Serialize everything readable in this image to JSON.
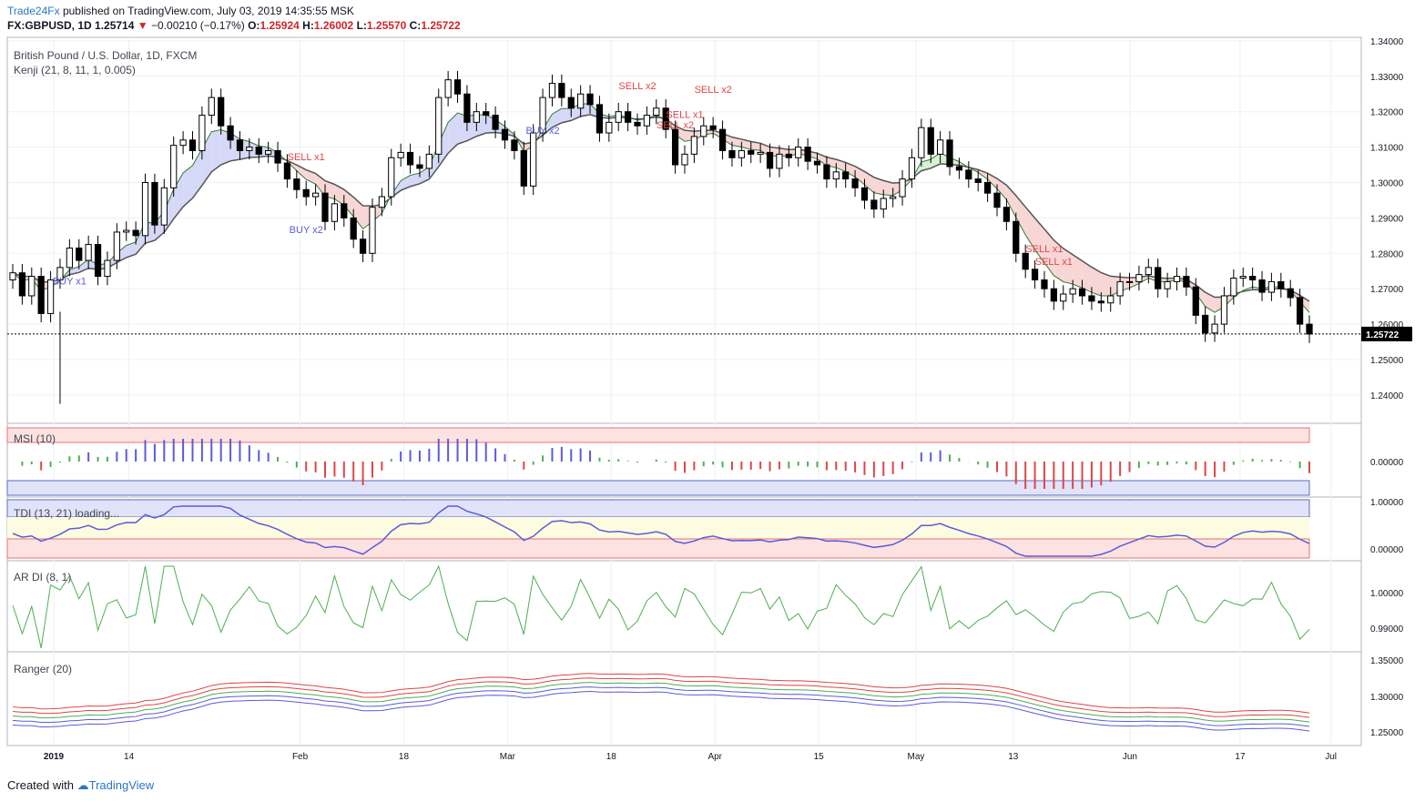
{
  "header": {
    "publisher": "Trade24Fx",
    "published_text": "published on TradingView.com, July 03, 2019 14:35:55 MSK",
    "symbol": "FX:GBPUSD, 1D",
    "last": "1.25714",
    "change": "−0.00210 (−0.17%)",
    "o_label": "O:",
    "o": "1.25924",
    "h_label": "H:",
    "h": "1.26002",
    "l_label": "L:",
    "l": "1.25570",
    "c_label": "C:",
    "c": "1.25722"
  },
  "footer": {
    "created_with": "Created with",
    "brand": "TradingView"
  },
  "colors": {
    "bull": "#ffffff",
    "bear": "#000000",
    "buy": "#5b5bdb",
    "sell": "#e04545",
    "green": "#4caf50",
    "grid": "#eef0f3",
    "price_line": "#000000"
  },
  "chart_data": {
    "type": "candlestick",
    "title": "British Pound / U.S. Dollar, 1D, FXCM",
    "last_price_label": "1.25722",
    "x_ticks": [
      "2019",
      "14",
      "Feb",
      "18",
      "Mar",
      "18",
      "Apr",
      "15",
      "May",
      "13",
      "Jun",
      "17",
      "Jul"
    ],
    "y_ticks": [
      "1.34000",
      "1.33000",
      "1.32000",
      "1.31000",
      "1.30000",
      "1.29000",
      "1.28000",
      "1.27000",
      "1.26000",
      "1.25000",
      "1.24000"
    ],
    "ylim": [
      1.232,
      1.341
    ],
    "closes": [
      1.2745,
      1.268,
      1.2735,
      1.263,
      1.2725,
      1.276,
      1.2815,
      1.278,
      1.2825,
      1.2735,
      1.278,
      1.286,
      1.2865,
      1.285,
      1.3,
      1.288,
      1.2985,
      1.3105,
      1.312,
      1.309,
      1.319,
      1.324,
      1.316,
      1.312,
      1.309,
      1.31,
      1.308,
      1.309,
      1.3055,
      1.301,
      1.298,
      1.296,
      1.297,
      1.289,
      1.294,
      1.29,
      1.284,
      1.28,
      1.293,
      1.296,
      1.307,
      1.3085,
      1.305,
      1.304,
      1.308,
      1.324,
      1.329,
      1.325,
      1.317,
      1.32,
      1.319,
      1.315,
      1.312,
      1.309,
      1.299,
      1.314,
      1.324,
      1.328,
      1.324,
      1.321,
      1.325,
      1.322,
      1.314,
      1.317,
      1.32,
      1.317,
      1.316,
      1.319,
      1.321,
      1.315,
      1.305,
      1.308,
      1.313,
      1.316,
      1.315,
      1.309,
      1.307,
      1.309,
      1.308,
      1.3085,
      1.304,
      1.308,
      1.307,
      1.31,
      1.306,
      1.305,
      1.301,
      1.303,
      1.301,
      1.2985,
      1.295,
      1.2925,
      1.2955,
      1.296,
      1.301,
      1.307,
      1.3155,
      1.308,
      1.312,
      1.3045,
      1.3035,
      1.301,
      1.3,
      1.297,
      1.293,
      1.289,
      1.28,
      1.2755,
      1.2725,
      1.27,
      1.2665,
      1.2685,
      1.27,
      1.268,
      1.2665,
      1.266,
      1.268,
      1.272,
      1.272,
      1.274,
      1.276,
      1.27,
      1.272,
      1.2735,
      1.2705,
      1.2625,
      1.2575,
      1.26,
      1.268,
      1.273,
      1.2735,
      1.2725,
      1.269,
      1.272,
      1.27,
      1.2675,
      1.26,
      1.2572
    ],
    "ohlc_note": "",
    "upper_band_color": "#5b5bdb",
    "markers": [
      {
        "text": "BUY x1",
        "x_date": "2019-01-10",
        "side": "buy"
      },
      {
        "text": "BUY x2",
        "x_date": "2019-02-15",
        "side": "buy"
      },
      {
        "text": "BUY x2",
        "x_date": "2019-03-22",
        "side": "buy"
      },
      {
        "text": "SELL x1",
        "x_date": "2019-02-14",
        "side": "sell"
      },
      {
        "text": "SELL x2",
        "x_date": "2019-04-05",
        "side": "sell"
      },
      {
        "text": "SELL x2",
        "x_date": "2019-04-10",
        "side": "sell"
      },
      {
        "text": "SELL x1",
        "x_date": "2019-04-12",
        "side": "sell"
      },
      {
        "text": "SELL x2",
        "x_date": "2019-04-15",
        "side": "sell"
      },
      {
        "text": "SELL x1",
        "x_date": "2019-06-03",
        "side": "sell"
      },
      {
        "text": "SELL x1",
        "x_date": "2019-06-05",
        "side": "sell"
      }
    ]
  },
  "panes": {
    "main": {
      "indicator": "Kenji (21, 8, 11, 1, 0.005)"
    },
    "msi": {
      "label": "MSI (10)",
      "ticks": [
        "0.00000"
      ]
    },
    "tdi": {
      "label": "TDI (13, 21) loading...",
      "ticks": [
        "1.00000",
        "0.00000"
      ]
    },
    "ardi": {
      "label": "AR DI (8, 1)",
      "ticks": [
        "1.00000",
        "0.99000"
      ]
    },
    "ranger": {
      "label": "Ranger (20)",
      "ticks": [
        "1.35000",
        "1.30000",
        "1.25000"
      ]
    }
  }
}
